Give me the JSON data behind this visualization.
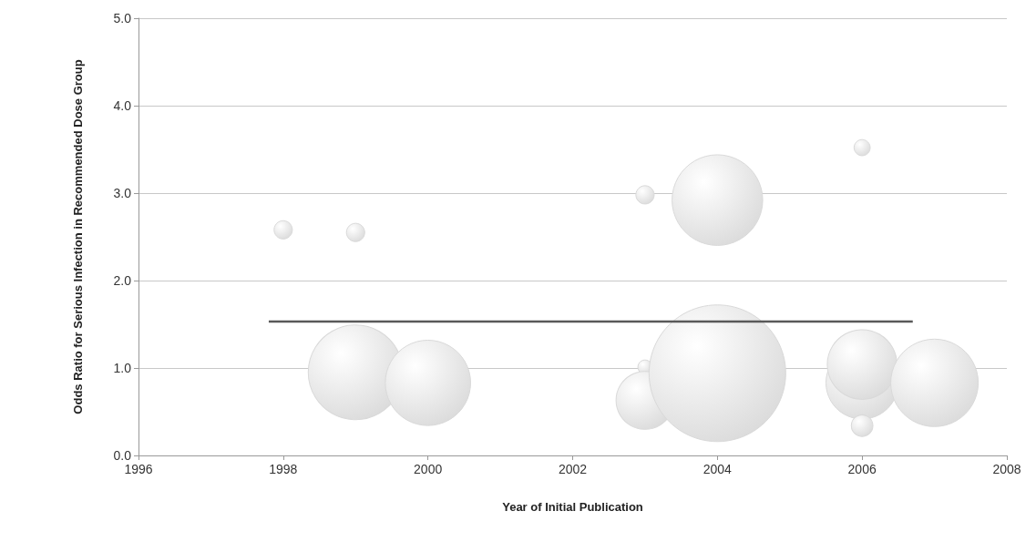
{
  "chart_data": {
    "type": "bubble",
    "xlabel": "Year of Initial Publication",
    "ylabel": "Odds Ratio for Serious Infection in Recommended Dose Group",
    "xlim": [
      1996,
      2008
    ],
    "xticks": [
      1996,
      1998,
      2000,
      2002,
      2004,
      2006,
      2008
    ],
    "ylim": [
      0,
      5
    ],
    "yticks": [
      {
        "value": 0,
        "label": "0.0"
      },
      {
        "value": 1,
        "label": "1.0"
      },
      {
        "value": 2,
        "label": "2.0"
      },
      {
        "value": 3,
        "label": "3.0"
      },
      {
        "value": 4,
        "label": "4.0"
      },
      {
        "value": 5,
        "label": "5.0"
      }
    ],
    "grid": "y",
    "series": [
      {
        "marker": "circle",
        "color": "#d9d9d9",
        "x": [
          1998,
          1999,
          1999,
          2000,
          2003,
          2003,
          2003,
          2004,
          2004,
          2006,
          2006,
          2006,
          2006,
          2007
        ],
        "values": [
          2.58,
          2.55,
          0.95,
          0.83,
          2.98,
          1.01,
          0.63,
          2.92,
          0.94,
          3.52,
          0.83,
          1.04,
          0.34,
          0.83
        ],
        "sizes": [
          0.018,
          0.018,
          0.48,
          0.39,
          0.018,
          0.011,
          0.18,
          0.44,
          1,
          0.014,
          0.28,
          0.26,
          0.025,
          0.41
        ]
      },
      {
        "type": "line",
        "color": "#595959",
        "x": [
          1997.8,
          2006.7
        ],
        "values": [
          1.53,
          1.53
        ]
      }
    ]
  }
}
